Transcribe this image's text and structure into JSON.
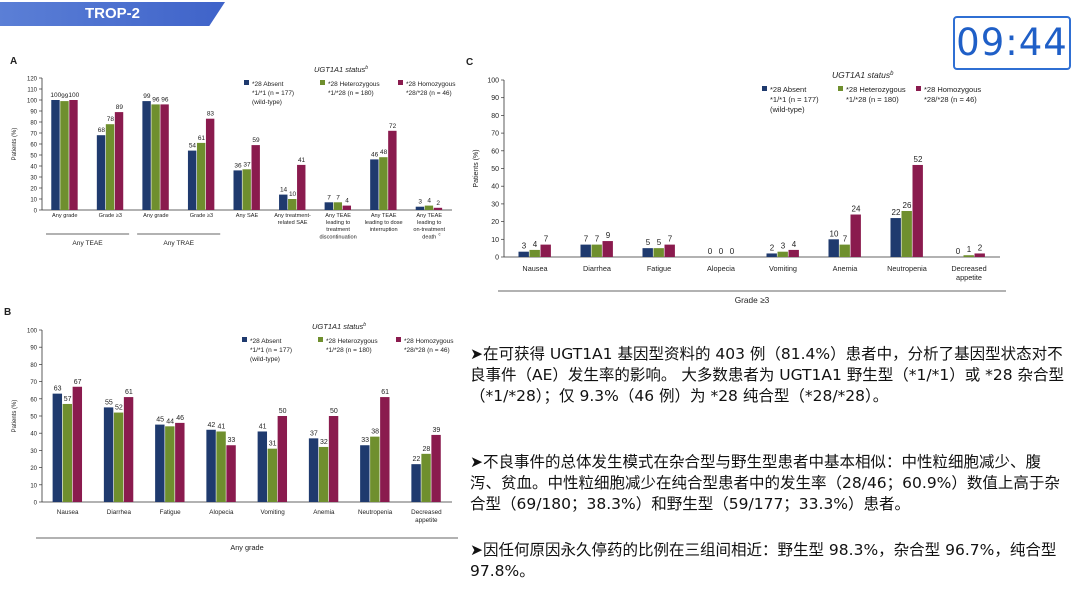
{
  "header": {
    "tag": "TROP-2",
    "timer": "09:44"
  },
  "colors": {
    "absent": "#1f3a6e",
    "hetero": "#6f8f2e",
    "homo": "#8a1b4e",
    "tag": "#4a6fd0",
    "timer": "#1f5fc7"
  },
  "legend": {
    "title": "UGT1A1 status",
    "title_sup": "b",
    "absent": [
      "*28 Absent",
      "*1/*1 (n = 177)",
      "(wild-type)"
    ],
    "hetero": [
      "*28 Heterozygous",
      "*1/*28 (n = 180)"
    ],
    "homo": [
      "*28 Homozygous",
      "*28/*28 (n = 46)"
    ]
  },
  "chart_data": [
    {
      "panel": "A",
      "type": "bar",
      "ylabel": "Patients (%)",
      "ylim": [
        0,
        120
      ],
      "yticks": [
        0,
        10,
        20,
        30,
        40,
        50,
        60,
        70,
        80,
        90,
        100,
        110,
        120
      ],
      "categories": [
        [
          "Any grade"
        ],
        [
          "Grade ≥3"
        ],
        [
          "Any grade"
        ],
        [
          "Grade ≥3"
        ],
        [
          "Any SAE"
        ],
        [
          "Any treatment-",
          "related SAE"
        ],
        [
          "Any TEAE",
          "leading to",
          "treatment",
          "discontinuation"
        ],
        [
          "Any TEAE",
          "leading to dose",
          "interruption"
        ],
        [
          "Any TEAE",
          "leading to",
          "on-treatment",
          "death"
        ]
      ],
      "groups": [
        {
          "label": "Any TEAE",
          "from": 0,
          "to": 1
        },
        {
          "label": "Any TRAE",
          "from": 2,
          "to": 3
        }
      ],
      "series": [
        {
          "name": "*28 Absent",
          "values": [
            100,
            68,
            99,
            54,
            36,
            14,
            7,
            46,
            3
          ]
        },
        {
          "name": "*28 Heterozygous",
          "values": [
            99,
            78,
            96,
            61,
            37,
            10,
            7,
            48,
            4
          ]
        },
        {
          "name": "*28 Homozygous",
          "values": [
            100,
            89,
            96,
            83,
            59,
            41,
            4,
            72,
            2
          ]
        }
      ],
      "footnotes": [
        {
          "category": 8,
          "sup": "c"
        }
      ]
    },
    {
      "panel": "B",
      "type": "bar",
      "ylabel": "Patients (%)",
      "ylim": [
        0,
        100
      ],
      "yticks": [
        0,
        10,
        20,
        30,
        40,
        50,
        60,
        70,
        80,
        90,
        100
      ],
      "xlabel": "Any grade",
      "categories": [
        [
          "Nausea"
        ],
        [
          "Diarrhea"
        ],
        [
          "Fatigue"
        ],
        [
          "Alopecia"
        ],
        [
          "Vomiting"
        ],
        [
          "Anemia"
        ],
        [
          "Neutropenia"
        ],
        [
          "Decreased",
          "appetite"
        ]
      ],
      "series": [
        {
          "name": "*28 Absent",
          "values": [
            63,
            55,
            45,
            42,
            41,
            37,
            33,
            22
          ]
        },
        {
          "name": "*28 Heterozygous",
          "values": [
            57,
            52,
            44,
            41,
            31,
            32,
            38,
            28
          ]
        },
        {
          "name": "*28 Homozygous",
          "values": [
            67,
            61,
            46,
            33,
            50,
            50,
            61,
            39
          ]
        }
      ]
    },
    {
      "panel": "C",
      "type": "bar",
      "ylabel": "Patients (%)",
      "ylim": [
        0,
        100
      ],
      "yticks": [
        0,
        10,
        20,
        30,
        40,
        50,
        60,
        70,
        80,
        90,
        100
      ],
      "xlabel": "Grade ≥3",
      "categories": [
        [
          "Nausea"
        ],
        [
          "Diarrhea"
        ],
        [
          "Fatigue"
        ],
        [
          "Alopecia"
        ],
        [
          "Vomiting"
        ],
        [
          "Anemia"
        ],
        [
          "Neutropenia"
        ],
        [
          "Decreased",
          "appetite"
        ]
      ],
      "series": [
        {
          "name": "*28 Absent",
          "values": [
            3,
            7,
            5,
            0,
            2,
            10,
            22,
            0
          ]
        },
        {
          "name": "*28 Heterozygous",
          "values": [
            4,
            7,
            5,
            0,
            3,
            7,
            26,
            1
          ]
        },
        {
          "name": "*28 Homozygous",
          "values": [
            7,
            9,
            7,
            0,
            4,
            24,
            52,
            2
          ]
        }
      ]
    }
  ],
  "notes": {
    "arrow": "➤",
    "p1": "在可获得 UGT1A1 基因型资料的 403 例（81.4%）患者中，分析了基因型状态对不良事件（AE）发生率的影响。 大多数患者为 UGT1A1 野生型（*1/*1）或 *28 杂合型（*1/*28）；仅 9.3%（46 例）为 *28 纯合型（*28/*28）。",
    "p2": "不良事件的总体发生模式在杂合型与野生型患者中基本相似：中性粒细胞减少、腹泻、贫血。中性粒细胞减少在纯合型患者中的发生率（28/46；60.9%）数值上高于杂合型（69/180；38.3%）和野生型（59/177；33.3%）患者。",
    "p3": "因任何原因永久停药的比例在三组间相近：野生型 98.3%，杂合型 96.7%，纯合型 97.8%。"
  }
}
